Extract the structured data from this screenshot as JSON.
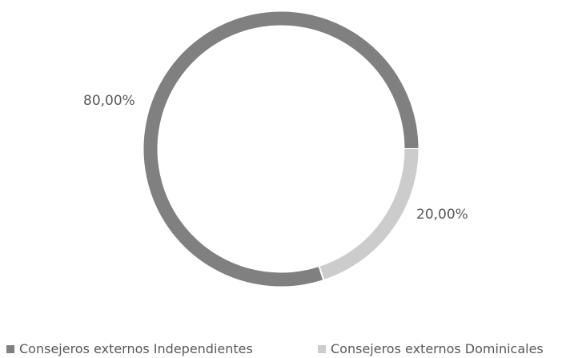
{
  "chart_data": {
    "type": "pie",
    "donut": true,
    "title": "",
    "categories": [
      "Consejeros externos Independientes",
      "Consejeros externos Dominicales"
    ],
    "values": [
      80.0,
      20.0
    ],
    "data_labels": [
      "80,00%",
      "20,00%"
    ],
    "colors": [
      "#808080",
      "#cccccc"
    ],
    "legend_position": "bottom"
  }
}
